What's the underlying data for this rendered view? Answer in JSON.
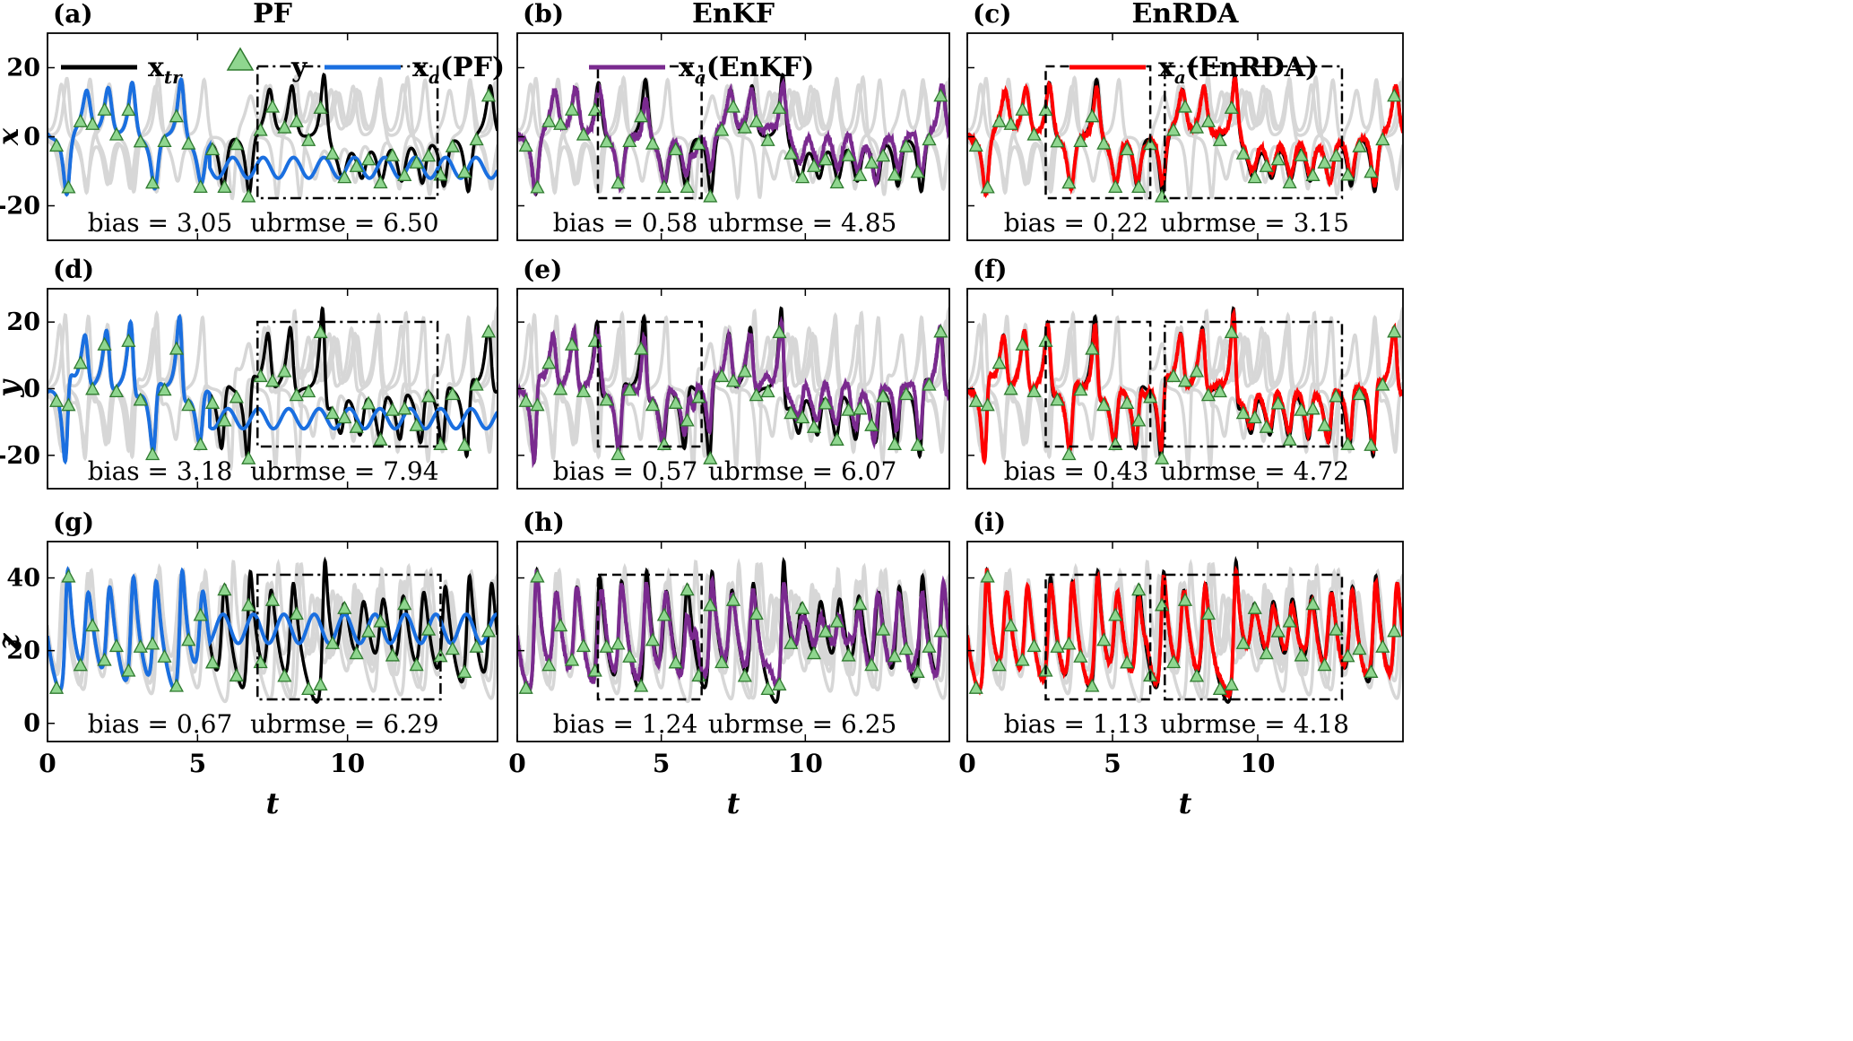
{
  "figure": {
    "column_titles": [
      "PF",
      "EnKF",
      "EnRDA"
    ],
    "x_axis": {
      "label": "t",
      "range": [
        0,
        15
      ],
      "ticks": [
        0,
        5,
        10
      ],
      "tick_labels": [
        "0",
        "5",
        "10"
      ]
    },
    "legend": {
      "truth_label": "x",
      "truth_sub": "tr",
      "obs_label": "y",
      "pf_label": "x",
      "pf_sub": "a",
      "pf_paren": "(PF)",
      "enkf_label": "x",
      "enkf_sub": "a",
      "enkf_paren": "(EnKF)",
      "enrda_label": "x",
      "enrda_sub": "a",
      "enrda_paren": "(EnRDA)"
    },
    "colors": {
      "truth": "#000000",
      "pf": "#1a6fe0",
      "enkf": "#7a2a8f",
      "enrda": "#ff0000",
      "ensemble": "#d7d7d7",
      "obs_fill": "#8fd68f",
      "obs_edge": "#2f7a2f"
    }
  },
  "chart_data": [
    {
      "type": "line",
      "panel_label": "(a)",
      "variable": "x",
      "ylabel": "x",
      "method": "PF",
      "ylim": [
        -30,
        30
      ],
      "yticks": [
        20,
        0,
        -20
      ],
      "ytick_labels": [
        "20",
        "0",
        "-20"
      ],
      "bias_text": "bias = 3.05",
      "ubrmse_text": "ubrmse = 6.50",
      "box_dashdot": [
        7.0,
        13.0
      ],
      "box_dashed": null
    },
    {
      "type": "line",
      "panel_label": "(b)",
      "variable": "x",
      "ylabel": "",
      "method": "EnKF",
      "ylim": [
        -30,
        30
      ],
      "yticks": [],
      "ytick_labels": [],
      "bias_text": "bias = 0.58",
      "ubrmse_text": "ubrmse = 4.85",
      "box_dashdot": null,
      "box_dashed": [
        2.8,
        6.4
      ]
    },
    {
      "type": "line",
      "panel_label": "(c)",
      "variable": "x",
      "ylabel": "",
      "method": "EnRDA",
      "ylim": [
        -30,
        30
      ],
      "yticks": [],
      "ytick_labels": [],
      "bias_text": "bias = 0.22",
      "ubrmse_text": "ubrmse = 3.15",
      "box_dashdot": [
        6.8,
        12.9
      ],
      "box_dashed": [
        2.7,
        6.3
      ]
    },
    {
      "type": "line",
      "panel_label": "(d)",
      "variable": "y",
      "ylabel": "y",
      "method": "PF",
      "ylim": [
        -30,
        30
      ],
      "yticks": [
        20,
        0,
        -20
      ],
      "ytick_labels": [
        "20",
        "0",
        "-20"
      ],
      "bias_text": "bias = 3.18",
      "ubrmse_text": "ubrmse = 7.94",
      "box_dashdot": [
        7.0,
        13.0
      ],
      "box_dashed": null
    },
    {
      "type": "line",
      "panel_label": "(e)",
      "variable": "y",
      "ylabel": "",
      "method": "EnKF",
      "ylim": [
        -30,
        30
      ],
      "yticks": [],
      "ytick_labels": [],
      "bias_text": "bias = 0.57",
      "ubrmse_text": "ubrmse = 6.07",
      "box_dashdot": null,
      "box_dashed": [
        2.8,
        6.4
      ]
    },
    {
      "type": "line",
      "panel_label": "(f)",
      "variable": "y",
      "ylabel": "",
      "method": "EnRDA",
      "ylim": [
        -30,
        30
      ],
      "yticks": [],
      "ytick_labels": [],
      "bias_text": "bias = 0.43",
      "ubrmse_text": "ubrmse = 4.72",
      "box_dashdot": [
        6.8,
        12.9
      ],
      "box_dashed": [
        2.7,
        6.3
      ]
    },
    {
      "type": "line",
      "panel_label": "(g)",
      "variable": "z",
      "ylabel": "z",
      "method": "PF",
      "ylim": [
        -5,
        50
      ],
      "yticks": [
        40,
        20,
        0
      ],
      "ytick_labels": [
        "40",
        "20",
        "0"
      ],
      "bias_text": "bias = 0.67",
      "ubrmse_text": "ubrmse = 6.29",
      "box_dashdot": [
        7.0,
        13.1
      ],
      "box_dashed": null
    },
    {
      "type": "line",
      "panel_label": "(h)",
      "variable": "z",
      "ylabel": "",
      "method": "EnKF",
      "ylim": [
        -5,
        50
      ],
      "yticks": [],
      "ytick_labels": [],
      "bias_text": "bias = 1.24",
      "ubrmse_text": "ubrmse = 6.25",
      "box_dashdot": null,
      "box_dashed": [
        2.8,
        6.4
      ]
    },
    {
      "type": "line",
      "panel_label": "(i)",
      "variable": "z",
      "ylabel": "",
      "method": "EnRDA",
      "ylim": [
        -5,
        50
      ],
      "yticks": [],
      "ytick_labels": [],
      "bias_text": "bias = 1.13",
      "ubrmse_text": "ubrmse = 4.18",
      "box_dashdot": [
        6.8,
        12.9
      ],
      "box_dashed": [
        2.7,
        6.3
      ]
    }
  ]
}
